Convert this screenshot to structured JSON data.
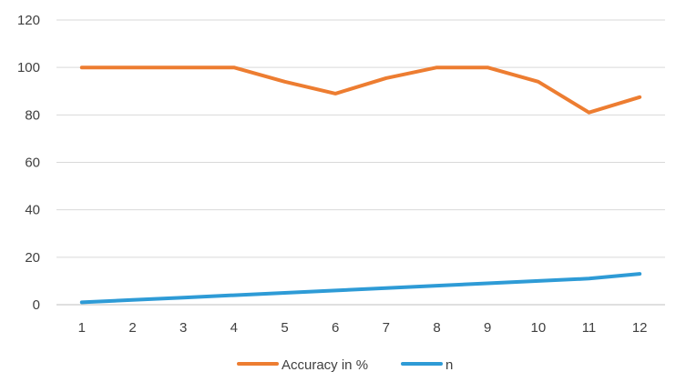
{
  "chart_data": {
    "type": "line",
    "x": [
      1,
      2,
      3,
      4,
      5,
      6,
      7,
      8,
      9,
      10,
      11,
      12
    ],
    "categories": [
      "1",
      "2",
      "3",
      "4",
      "5",
      "6",
      "7",
      "8",
      "9",
      "10",
      "11",
      "12"
    ],
    "series": [
      {
        "name": "Accuracy in %",
        "color": "#ED7D31",
        "values": [
          100,
          100,
          100,
          100,
          94,
          89,
          95.5,
          100,
          100,
          94,
          81,
          87.5
        ]
      },
      {
        "name": "n",
        "color": "#2E9BD6",
        "values": [
          1,
          2,
          3,
          4,
          5,
          6,
          7,
          8,
          9,
          10,
          11,
          13
        ]
      }
    ],
    "ylim": [
      0,
      120
    ],
    "yticks": [
      "0",
      "20",
      "40",
      "60",
      "80",
      "100",
      "120"
    ],
    "grid": true,
    "legend": "bottom",
    "title": "",
    "xlabel": "",
    "ylabel": ""
  }
}
